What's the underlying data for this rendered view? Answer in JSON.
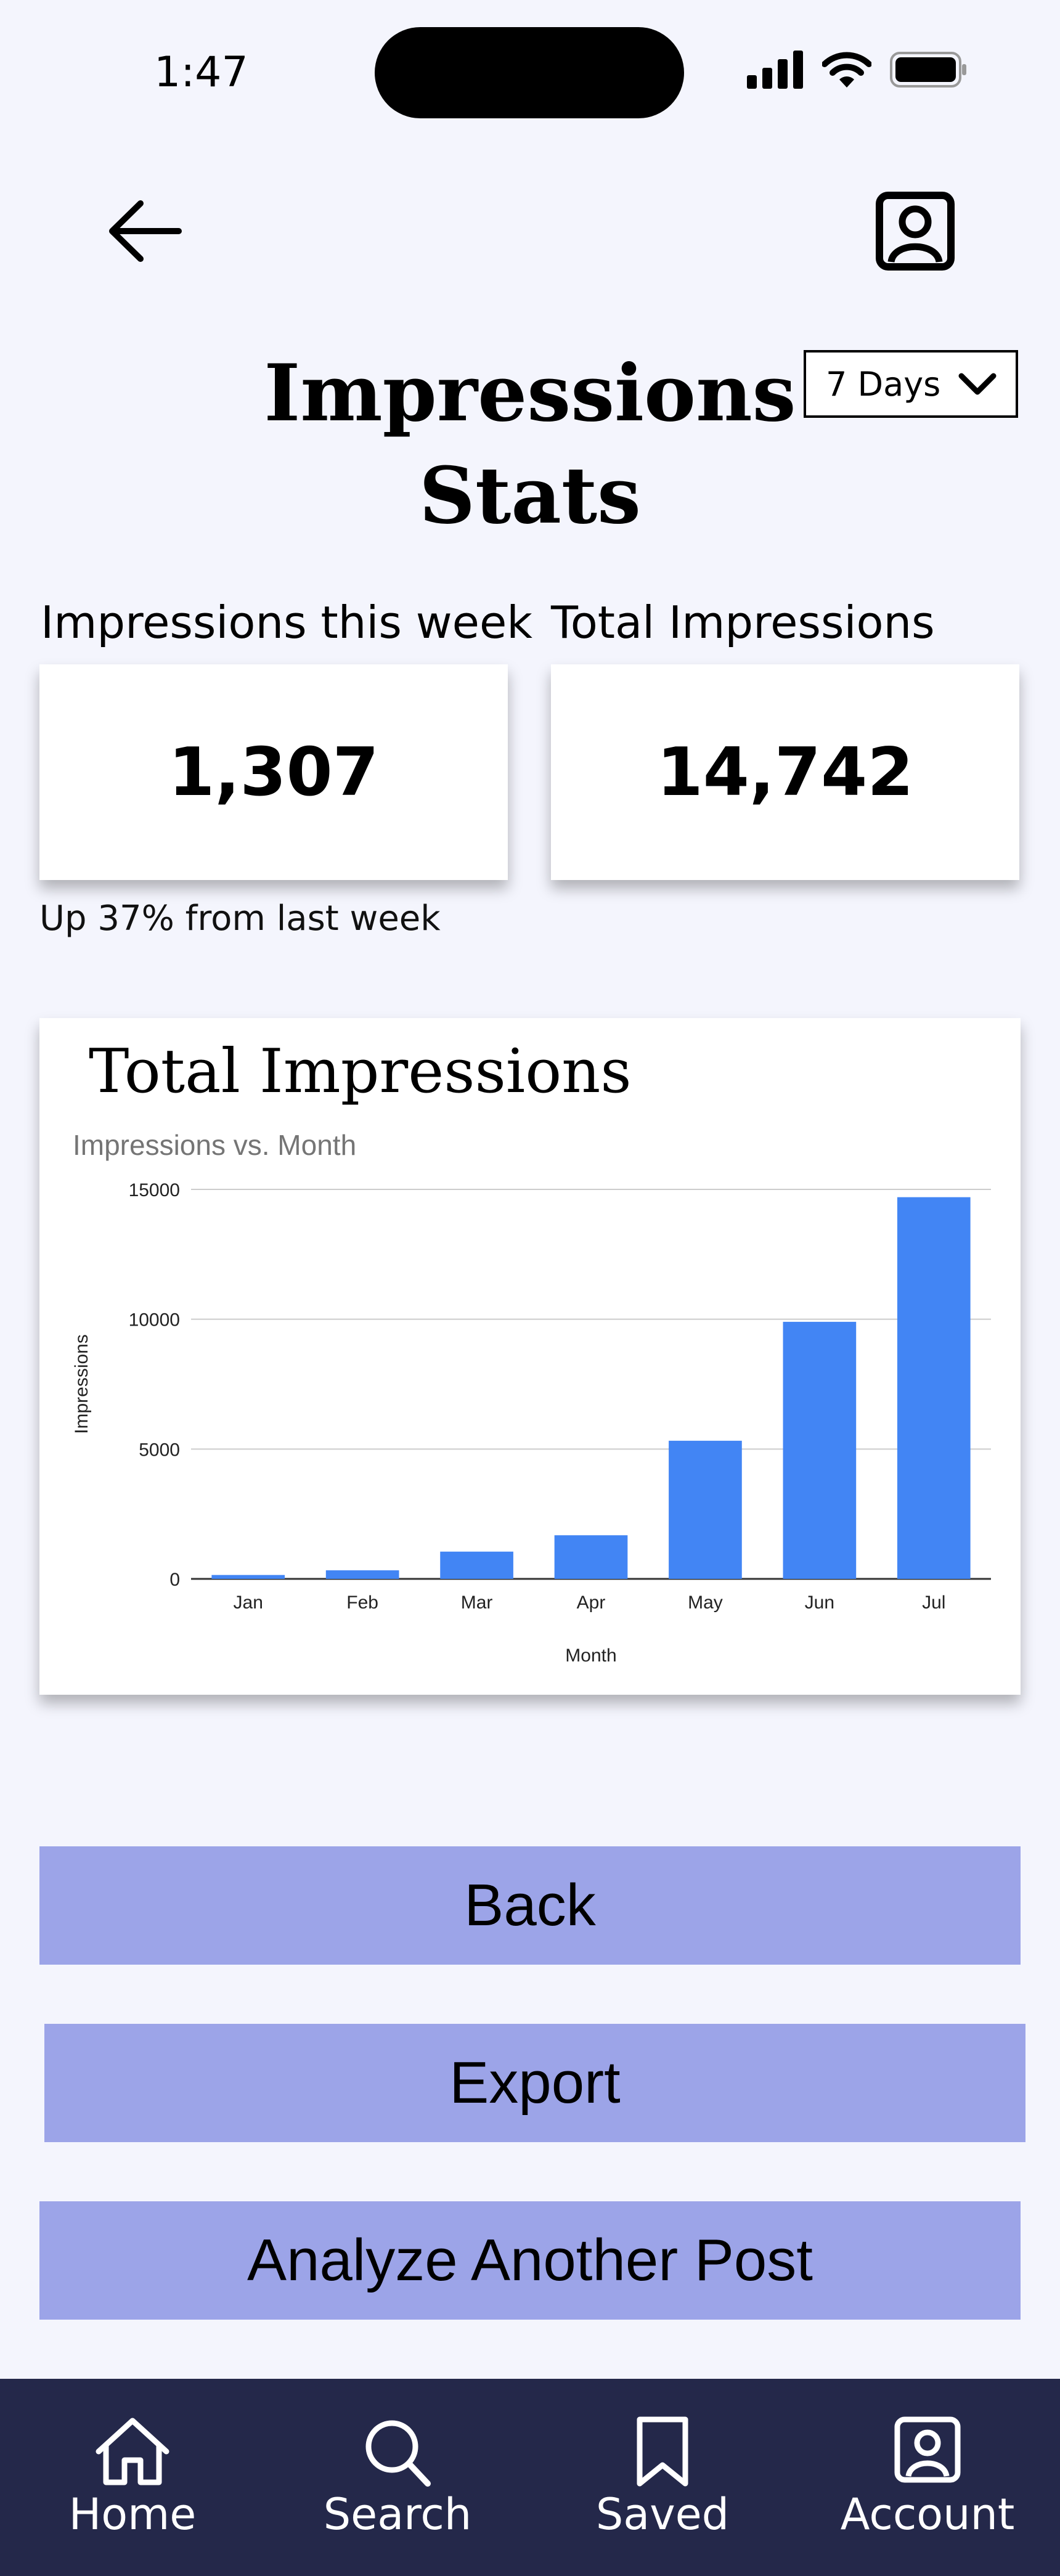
{
  "status_bar": {
    "time": "1:47",
    "icons": [
      "cellular-signal-icon",
      "wifi-icon",
      "battery-icon"
    ]
  },
  "header": {
    "back_icon": "arrow-left-icon",
    "profile_icon": "profile-badge-icon",
    "title": "Impressions Stats",
    "range_select": {
      "value": "7 Days",
      "icon": "chevron-down-icon"
    }
  },
  "stats": {
    "week": {
      "label": "Impressions this week",
      "value": "1,307"
    },
    "total": {
      "label": "Total Impressions",
      "value": "14,742"
    },
    "trend_text": "Up 37% from last week"
  },
  "chart_card": {
    "heading": "Total Impressions"
  },
  "chart_data": {
    "type": "bar",
    "title": "Impressions vs. Month",
    "xlabel": "Month",
    "ylabel": "Impressions",
    "categories": [
      "Jan",
      "Feb",
      "Mar",
      "Apr",
      "May",
      "Jun",
      "Jul"
    ],
    "values": [
      150,
      330,
      1050,
      1680,
      5320,
      9900,
      14700
    ],
    "ylim": [
      0,
      15000
    ],
    "yticks": [
      0,
      5000,
      10000,
      15000
    ],
    "grid": true,
    "bar_color": "#4285f4"
  },
  "actions": {
    "back": "Back",
    "export": "Export",
    "analyze": "Analyze Another Post"
  },
  "nav": {
    "items": [
      {
        "label": "Home",
        "icon": "home-icon"
      },
      {
        "label": "Search",
        "icon": "search-icon"
      },
      {
        "label": "Saved",
        "icon": "bookmark-icon"
      },
      {
        "label": "Account",
        "icon": "account-icon"
      }
    ]
  },
  "colors": {
    "background": "#f4f5fd",
    "button": "#9ca4e8",
    "nav_bar": "#24284a"
  }
}
